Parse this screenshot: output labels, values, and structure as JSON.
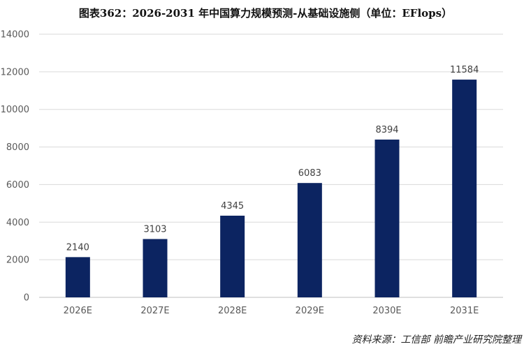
{
  "chart_data": {
    "type": "bar",
    "title": "图表362：2026-2031 年中国算力规模预测-从基础设施侧（单位：EFlops）",
    "categories": [
      "2026E",
      "2027E",
      "2028E",
      "2029E",
      "2030E",
      "2031E"
    ],
    "values": [
      2140,
      3103,
      4345,
      6083,
      8394,
      11584
    ],
    "data_labels": [
      "2140",
      "3103",
      "4345",
      "6083",
      "8394",
      "11584"
    ],
    "y_ticks": [
      0,
      2000,
      4000,
      6000,
      8000,
      10000,
      12000,
      14000
    ],
    "ylim": [
      0,
      14000
    ],
    "xlabel": "",
    "ylabel": "",
    "grid": true,
    "legend": "none",
    "bar_color": "#0c2461",
    "gridline_color": "#d9d9d9"
  },
  "source_text": "资料来源：工信部  前瞻产业研究院整理"
}
